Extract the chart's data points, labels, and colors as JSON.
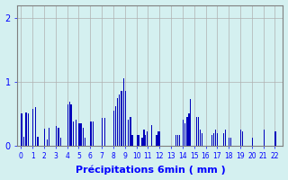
{
  "xlabel": "Précipitations 6min ( mm )",
  "ylim": [
    0,
    2.2
  ],
  "yticks": [
    0,
    1,
    2
  ],
  "background_color": "#d4f0f0",
  "bar_color": "#0000bb",
  "grid_color": "#b0b0b0",
  "xlabel_fontsize": 8,
  "xlim": [
    -0.3,
    22.7
  ],
  "bars": [
    [
      0.05,
      0.5
    ],
    [
      0.25,
      0.14
    ],
    [
      0.45,
      0.52
    ],
    [
      0.65,
      0.5
    ],
    [
      1.05,
      0.58
    ],
    [
      1.25,
      0.6
    ],
    [
      1.45,
      0.14
    ],
    [
      2.05,
      0.26
    ],
    [
      2.25,
      0.1
    ],
    [
      2.45,
      0.28
    ],
    [
      3.05,
      0.3
    ],
    [
      3.25,
      0.28
    ],
    [
      3.45,
      0.13
    ],
    [
      4.05,
      0.65
    ],
    [
      4.2,
      0.68
    ],
    [
      4.35,
      0.65
    ],
    [
      4.55,
      0.38
    ],
    [
      4.75,
      0.4
    ],
    [
      5.05,
      0.35
    ],
    [
      5.2,
      0.35
    ],
    [
      5.4,
      0.28
    ],
    [
      5.55,
      0.12
    ],
    [
      6.05,
      0.38
    ],
    [
      6.25,
      0.38
    ],
    [
      7.05,
      0.44
    ],
    [
      7.25,
      0.44
    ],
    [
      8.05,
      0.55
    ],
    [
      8.2,
      0.62
    ],
    [
      8.35,
      0.75
    ],
    [
      8.5,
      0.8
    ],
    [
      8.65,
      0.85
    ],
    [
      8.75,
      0.85
    ],
    [
      8.9,
      1.05
    ],
    [
      9.05,
      0.85
    ],
    [
      9.3,
      0.4
    ],
    [
      9.5,
      0.45
    ],
    [
      9.65,
      0.17
    ],
    [
      10.05,
      0.17
    ],
    [
      10.2,
      0.17
    ],
    [
      10.5,
      0.12
    ],
    [
      10.65,
      0.25
    ],
    [
      10.8,
      0.17
    ],
    [
      10.95,
      0.22
    ],
    [
      11.3,
      0.32
    ],
    [
      11.75,
      0.17
    ],
    [
      11.9,
      0.22
    ],
    [
      12.05,
      0.22
    ],
    [
      13.45,
      0.17
    ],
    [
      13.6,
      0.17
    ],
    [
      13.75,
      0.17
    ],
    [
      14.05,
      0.4
    ],
    [
      14.2,
      0.35
    ],
    [
      14.4,
      0.45
    ],
    [
      14.55,
      0.5
    ],
    [
      14.7,
      0.73
    ],
    [
      15.2,
      0.45
    ],
    [
      15.35,
      0.45
    ],
    [
      15.55,
      0.25
    ],
    [
      15.7,
      0.2
    ],
    [
      16.55,
      0.17
    ],
    [
      16.7,
      0.2
    ],
    [
      16.85,
      0.25
    ],
    [
      17.0,
      0.2
    ],
    [
      17.55,
      0.2
    ],
    [
      17.7,
      0.25
    ],
    [
      18.05,
      0.12
    ],
    [
      18.2,
      0.12
    ],
    [
      19.05,
      0.25
    ],
    [
      19.2,
      0.22
    ],
    [
      20.05,
      0.12
    ],
    [
      21.05,
      0.25
    ],
    [
      22.05,
      0.22
    ]
  ],
  "xtick_positions": [
    0,
    1,
    2,
    3,
    4,
    5,
    6,
    7,
    8,
    9,
    10,
    11,
    12,
    13,
    14,
    15,
    16,
    17,
    18,
    19,
    20,
    21,
    22
  ],
  "xtick_labels": [
    "0",
    "1",
    "2",
    "3",
    "4",
    "5",
    "6",
    "7",
    "8",
    "9",
    "10",
    "11",
    "12",
    "13",
    "14",
    "15",
    "16",
    "17",
    "18",
    "19",
    "20",
    "21",
    "22"
  ]
}
